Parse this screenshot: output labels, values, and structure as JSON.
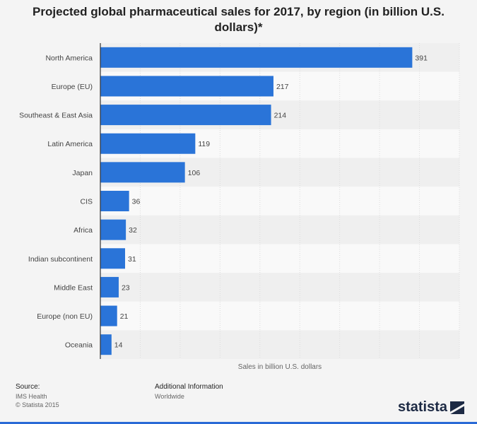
{
  "chart_data": {
    "type": "bar",
    "orientation": "horizontal",
    "title": "Projected global pharmaceutical sales for 2017, by region (in billion U.S. dollars)*",
    "xlabel": "Sales in billion U.S. dollars",
    "ylabel": "",
    "categories": [
      "North America",
      "Europe (EU)",
      "Southeast & East Asia",
      "Latin America",
      "Japan",
      "CIS",
      "Africa",
      "Indian subcontinent",
      "Middle East",
      "Europe (non EU)",
      "Oceania"
    ],
    "values": [
      391,
      217,
      214,
      119,
      106,
      36,
      32,
      31,
      23,
      21,
      14
    ],
    "xlim": [
      0,
      450
    ],
    "grid": true,
    "bar_color": "#2a74d8"
  },
  "footer": {
    "source_label": "Source:",
    "source_lines": [
      "IMS Health",
      "© Statista 2015"
    ],
    "info_label": "Additional Information",
    "info_text": "Worldwide"
  },
  "brand": {
    "name": "statista"
  }
}
